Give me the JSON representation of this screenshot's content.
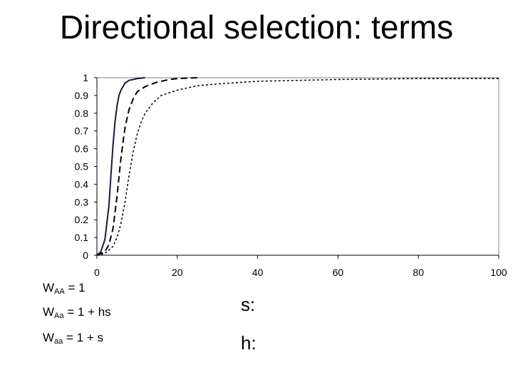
{
  "slide": {
    "title": "Directional selection: terms",
    "equations": [
      {
        "prefix": "W",
        "sub": "AA",
        "rhs": " = 1"
      },
      {
        "prefix": "W",
        "sub": "Aa",
        "rhs": " = 1 + hs"
      },
      {
        "prefix": "W",
        "sub": "aa",
        "rhs": " = 1 + s"
      }
    ],
    "params": [
      "s:",
      "h:"
    ]
  },
  "chart_data": {
    "type": "line",
    "title": "",
    "xlabel": "",
    "ylabel": "",
    "xlim": [
      0,
      100
    ],
    "ylim": [
      0,
      1
    ],
    "x_ticks": [
      0,
      20,
      40,
      60,
      80,
      100
    ],
    "y_ticks": [
      0,
      0.1,
      0.2,
      0.3,
      0.4,
      0.5,
      0.6,
      0.7,
      0.8,
      0.9,
      1
    ],
    "y_tick_labels": [
      "0",
      "0.1",
      "0.2",
      "0.3",
      "0.4",
      "0.5",
      "0.6",
      "0.7",
      "0.8",
      "0.9",
      "1"
    ],
    "grid": false,
    "series": [
      {
        "style": "solid",
        "x": [
          0,
          1,
          2,
          3,
          3.5,
          4,
          4.5,
          5,
          5.5,
          6,
          7,
          8,
          9,
          10,
          12
        ],
        "y": [
          0,
          0.02,
          0.09,
          0.28,
          0.45,
          0.62,
          0.75,
          0.84,
          0.9,
          0.93,
          0.97,
          0.985,
          0.99,
          0.995,
          1
        ]
      },
      {
        "style": "long-dash",
        "x": [
          0,
          2,
          3,
          4,
          5,
          6,
          7,
          8,
          9,
          10,
          12,
          15,
          18,
          20,
          25
        ],
        "y": [
          0,
          0.02,
          0.06,
          0.15,
          0.33,
          0.55,
          0.72,
          0.82,
          0.88,
          0.92,
          0.95,
          0.975,
          0.99,
          0.995,
          1
        ]
      },
      {
        "style": "short-dash",
        "x": [
          0,
          2,
          4,
          5,
          6,
          7,
          8,
          9,
          10,
          11,
          12,
          14,
          16,
          20,
          25,
          30,
          40,
          60,
          80,
          100
        ],
        "y": [
          0,
          0.01,
          0.05,
          0.1,
          0.18,
          0.3,
          0.45,
          0.58,
          0.68,
          0.75,
          0.8,
          0.86,
          0.9,
          0.93,
          0.955,
          0.965,
          0.98,
          0.99,
          0.995,
          0.995
        ]
      }
    ]
  }
}
